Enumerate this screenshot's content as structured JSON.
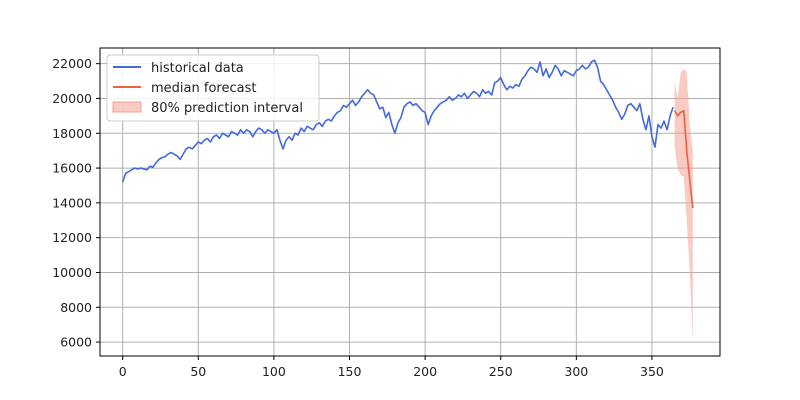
{
  "chart_data": {
    "type": "line",
    "title": "",
    "xlabel": "",
    "ylabel": "",
    "xlim": [
      -15,
      395
    ],
    "ylim": [
      5200,
      22900
    ],
    "grid": true,
    "legend_position": "top-left",
    "x_ticks": [
      0,
      50,
      100,
      150,
      200,
      250,
      300,
      350
    ],
    "y_ticks": [
      6000,
      8000,
      10000,
      12000,
      14000,
      16000,
      18000,
      20000,
      22000
    ],
    "x_tick_labels": [
      "0",
      "50",
      "100",
      "150",
      "200",
      "250",
      "300",
      "350"
    ],
    "y_tick_labels": [
      "6000",
      "8000",
      "10000",
      "12000",
      "14000",
      "16000",
      "18000",
      "20000",
      "22000"
    ],
    "series": [
      {
        "name": "historical data",
        "color": "#4169e1",
        "x": [
          0,
          2,
          4,
          6,
          8,
          10,
          12,
          14,
          16,
          18,
          20,
          22,
          24,
          26,
          28,
          30,
          32,
          34,
          36,
          38,
          40,
          42,
          44,
          46,
          48,
          50,
          52,
          54,
          56,
          58,
          60,
          62,
          64,
          66,
          68,
          70,
          72,
          74,
          76,
          78,
          80,
          82,
          84,
          86,
          88,
          90,
          92,
          94,
          96,
          98,
          100,
          102,
          104,
          106,
          108,
          110,
          112,
          114,
          116,
          118,
          120,
          122,
          124,
          126,
          128,
          130,
          132,
          134,
          136,
          138,
          140,
          142,
          144,
          146,
          148,
          150,
          152,
          154,
          156,
          158,
          160,
          162,
          164,
          166,
          168,
          170,
          172,
          174,
          176,
          178,
          180,
          182,
          184,
          186,
          188,
          190,
          192,
          194,
          196,
          198,
          200,
          202,
          204,
          206,
          208,
          210,
          212,
          214,
          216,
          218,
          220,
          222,
          224,
          226,
          228,
          230,
          232,
          234,
          236,
          238,
          240,
          242,
          244,
          246,
          248,
          250,
          252,
          254,
          256,
          258,
          260,
          262,
          264,
          266,
          268,
          270,
          272,
          274,
          276,
          278,
          280,
          282,
          284,
          286,
          288,
          290,
          292,
          294,
          296,
          298,
          300,
          302,
          304,
          306,
          308,
          310,
          312,
          314,
          316,
          318,
          320,
          322,
          324,
          326,
          328,
          330,
          332,
          334,
          336,
          338,
          340,
          342,
          344,
          346,
          348,
          350,
          352,
          354,
          356,
          358,
          360,
          362,
          364
        ],
        "values": [
          15200,
          15700,
          15800,
          15900,
          16000,
          15950,
          16000,
          15950,
          15900,
          16100,
          16050,
          16300,
          16500,
          16600,
          16650,
          16800,
          16900,
          16800,
          16700,
          16500,
          16800,
          17100,
          17200,
          17100,
          17300,
          17500,
          17400,
          17600,
          17700,
          17500,
          17800,
          17900,
          17700,
          18000,
          17900,
          17800,
          18100,
          18000,
          17900,
          18200,
          18000,
          18200,
          18100,
          17800,
          18100,
          18300,
          18200,
          18000,
          18200,
          18100,
          18000,
          18200,
          17600,
          17100,
          17600,
          17800,
          17600,
          18000,
          17900,
          18300,
          18100,
          18400,
          18300,
          18200,
          18500,
          18600,
          18400,
          18700,
          18800,
          18700,
          19000,
          19200,
          19300,
          19600,
          19500,
          19700,
          19900,
          19600,
          19800,
          20100,
          20300,
          20500,
          20300,
          20200,
          19800,
          19400,
          19500,
          18900,
          19200,
          18500,
          18000,
          18600,
          18900,
          19500,
          19700,
          19800,
          19600,
          19700,
          19500,
          19300,
          19200,
          18500,
          19000,
          19300,
          19500,
          19700,
          19800,
          19900,
          20100,
          19900,
          20000,
          20200,
          20100,
          20300,
          20000,
          20200,
          20400,
          20300,
          20100,
          20500,
          20300,
          20400,
          20200,
          20900,
          21000,
          21200,
          20800,
          20500,
          20700,
          20600,
          20800,
          20700,
          21100,
          21300,
          21600,
          21800,
          21700,
          21500,
          22100,
          21300,
          21700,
          21200,
          21500,
          21900,
          21700,
          21300,
          21600,
          21500,
          21400,
          21300,
          21600,
          21700,
          21900,
          21700,
          21800,
          22100,
          22200,
          21800,
          21000,
          20800,
          20500,
          20200,
          19900,
          19500,
          19200,
          18800,
          19100,
          19600,
          19700,
          19500,
          19300,
          19700,
          18800,
          18200,
          19000,
          17800,
          17200,
          18500,
          18300,
          18700,
          18200,
          19000,
          19500
        ]
      },
      {
        "name": "median forecast",
        "color": "#f06040",
        "x": [
          365,
          367,
          369,
          371,
          373,
          375,
          377
        ],
        "values": [
          19300,
          19000,
          19200,
          19300,
          17000,
          15300,
          13700
        ]
      }
    ],
    "interval": {
      "name": "80% prediction interval",
      "color": "#f4a090",
      "x": [
        365,
        367,
        369,
        371,
        373,
        375,
        377
      ],
      "lower": [
        17200,
        16000,
        15600,
        15500,
        13000,
        10000,
        6000
      ],
      "upper": [
        20900,
        20000,
        21500,
        21700,
        21500,
        18500,
        17000
      ]
    }
  }
}
